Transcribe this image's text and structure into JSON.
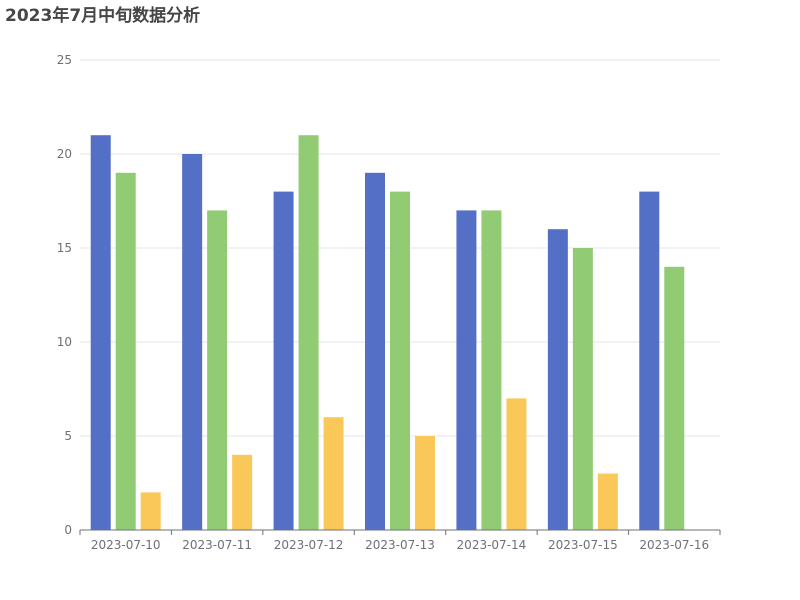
{
  "chart_data": {
    "type": "bar",
    "title": "2023年7月中旬数据分析",
    "categories": [
      "2023-07-10",
      "2023-07-11",
      "2023-07-12",
      "2023-07-13",
      "2023-07-14",
      "2023-07-15",
      "2023-07-16"
    ],
    "series": [
      {
        "color": "#5470c6",
        "values": [
          21,
          20,
          18,
          19,
          17,
          16,
          18
        ]
      },
      {
        "color": "#91cc75",
        "values": [
          19,
          17,
          21,
          18,
          17,
          15,
          14
        ]
      },
      {
        "color": "#fac858",
        "values": [
          2,
          4,
          6,
          5,
          7,
          3,
          0
        ]
      }
    ],
    "ylim": [
      0,
      25
    ],
    "yticks": [
      0,
      5,
      10,
      15,
      20,
      25
    ],
    "xlabel": "",
    "ylabel": "",
    "grid": true,
    "legend": "none"
  }
}
